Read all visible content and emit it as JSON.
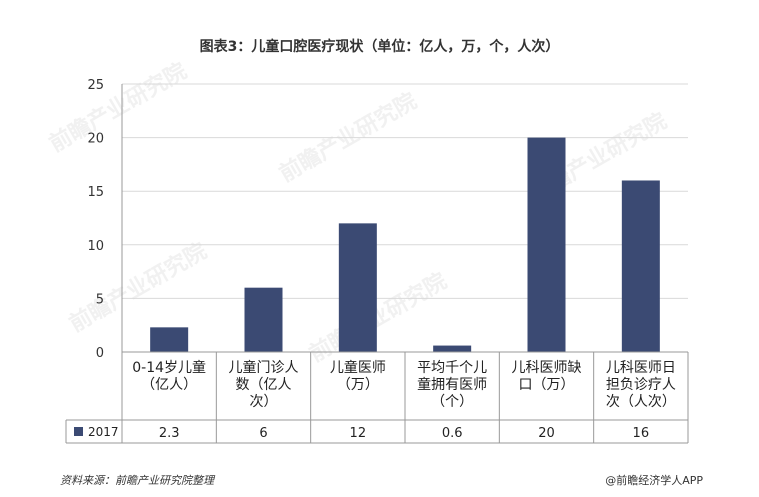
{
  "title": "图表3：儿童口腔医疗现状（单位：亿人，万，个，人次）",
  "footer": {
    "source": "资料来源：前瞻产业研究院整理",
    "credit": "@前瞻经济学人APP"
  },
  "watermark": "前瞻产业研究院",
  "colors": {
    "bar": "#3b4a73",
    "grid": "#d9d9d9",
    "axis": "#999999"
  },
  "chart_data": {
    "type": "bar",
    "categories": [
      [
        "0-14岁儿童",
        "（亿人）"
      ],
      [
        "儿童门诊人",
        "数（亿人",
        "次）"
      ],
      [
        "儿童医师",
        "（万）"
      ],
      [
        "平均千个儿",
        "童拥有医师",
        "（个）"
      ],
      [
        "儿科医师缺",
        "口（万）"
      ],
      [
        "儿科医师日",
        "担负诊疗人",
        "次（人次）"
      ]
    ],
    "series": [
      {
        "name": "2017",
        "values": [
          2.3,
          6,
          12,
          0.6,
          20,
          16
        ]
      }
    ],
    "ylim": [
      0,
      25
    ],
    "yticks": [
      0,
      5,
      10,
      15,
      20,
      25
    ],
    "grid": true,
    "legend": "data-table"
  }
}
